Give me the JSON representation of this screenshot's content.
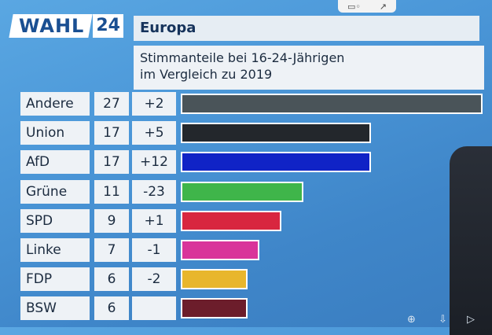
{
  "header": {
    "logo_word": "WAHL",
    "logo_number": "24",
    "region": "Europa"
  },
  "subtitle": {
    "line1": "Stimmanteile bei 16-24-Jährigen",
    "line2": "im Vergleich zu 2019"
  },
  "chart_data": {
    "type": "bar",
    "orientation": "horizontal",
    "title": "Stimmanteile bei 16-24-Jährigen im Vergleich zu 2019",
    "categories": [
      "Andere",
      "Union",
      "AfD",
      "Grüne",
      "SPD",
      "Linke",
      "FDP",
      "BSW"
    ],
    "values": [
      27,
      17,
      17,
      11,
      9,
      7,
      6,
      6
    ],
    "change_labels": [
      "+2",
      "+5",
      "+12",
      "-23",
      "+1",
      "-1",
      "-2",
      ""
    ],
    "colors": [
      "#4a5459",
      "#23272c",
      "#1023c6",
      "#3fb54a",
      "#d8263f",
      "#d9349a",
      "#e8b62c",
      "#6c1d2b"
    ],
    "xlim": [
      0,
      27
    ],
    "grid": false,
    "legend": "none"
  },
  "overlay_icons": [
    "screen-icon",
    "share-icon"
  ],
  "player_icons": [
    "zoom-icon",
    "download-icon",
    "play-icon"
  ]
}
